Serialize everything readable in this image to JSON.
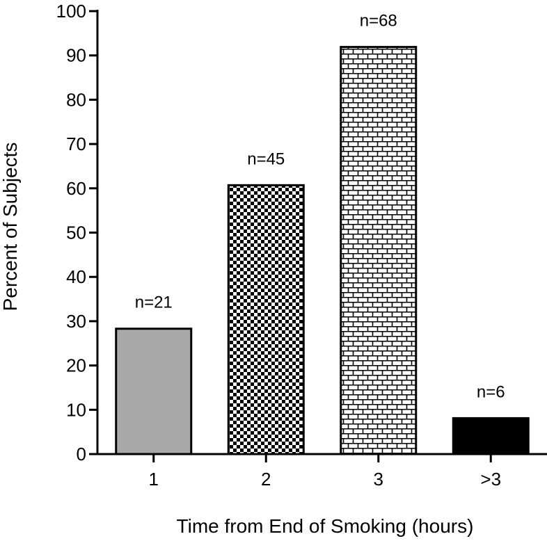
{
  "chart_data": {
    "type": "bar",
    "categories": [
      "1",
      "2",
      "3",
      ">3"
    ],
    "values": [
      28.3,
      60.7,
      91.9,
      8.1
    ],
    "data_labels": [
      "n=21",
      "n=45",
      "n=68",
      "n=6"
    ],
    "fills": [
      "gray",
      "checker",
      "brick",
      "black"
    ],
    "colors": {
      "gray": "#a8a8a8",
      "black": "#000000",
      "edge": "#000000"
    },
    "xlabel": "Time from End of Smoking (hours)",
    "ylabel": "Percent of Subjects",
    "ylim": [
      0,
      100
    ],
    "yticks": [
      "0",
      "10",
      "20",
      "30",
      "40",
      "50",
      "60",
      "70",
      "80",
      "90",
      "100"
    ],
    "grid": false,
    "legend": "none"
  }
}
